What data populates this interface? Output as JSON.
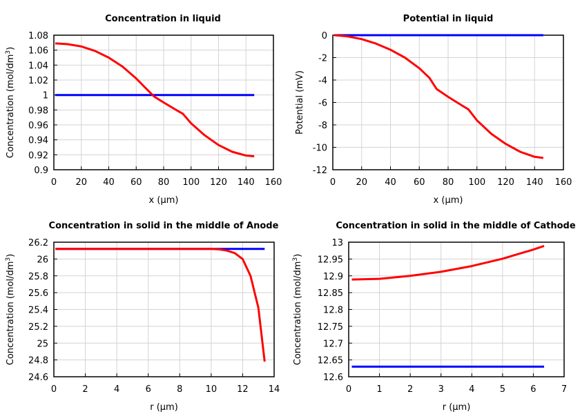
{
  "chart_data": [
    {
      "type": "line",
      "title": "Concentration in liquid",
      "xlabel": "x (µm)",
      "ylabel": "Concentration (mol/dm3)",
      "xlim": [
        0,
        160
      ],
      "ylim": [
        0.9,
        1.08
      ],
      "xticks": [
        0,
        20,
        40,
        60,
        80,
        100,
        120,
        140,
        160
      ],
      "yticks": [
        0.9,
        0.92,
        0.94,
        0.96,
        0.98,
        1,
        1.02,
        1.04,
        1.06,
        1.08
      ],
      "yticklabels": [
        "0.9",
        "0.92",
        "0.94",
        "0.96",
        "0.98",
        "1",
        "1.02",
        "1.04",
        "1.06",
        "1.08"
      ],
      "grid": true,
      "series": [
        {
          "color": "#0000ff",
          "x": [
            1,
            146
          ],
          "y": [
            1,
            1
          ]
        },
        {
          "color": "#ff0000",
          "x": [
            1,
            10,
            20,
            30,
            40,
            50,
            60,
            67,
            73,
            80,
            90,
            94,
            100,
            110,
            120,
            130,
            140,
            146
          ],
          "y": [
            1.069,
            1.068,
            1.065,
            1.059,
            1.05,
            1.038,
            1.022,
            1.009,
            0.998,
            0.99,
            0.979,
            0.975,
            0.962,
            0.946,
            0.933,
            0.924,
            0.919,
            0.918
          ]
        }
      ]
    },
    {
      "type": "line",
      "title": "Potential in liquid",
      "xlabel": "x (µm)",
      "ylabel": "Potential (mV)",
      "xlim": [
        0,
        160
      ],
      "ylim": [
        -12,
        0
      ],
      "xticks": [
        0,
        20,
        40,
        60,
        80,
        100,
        120,
        140,
        160
      ],
      "yticks": [
        -12,
        -10,
        -8,
        -6,
        -4,
        -2,
        0
      ],
      "yticklabels": [
        "-12",
        "-10",
        "-8",
        "-6",
        "-4",
        "-2",
        "0"
      ],
      "grid": true,
      "series": [
        {
          "color": "#0000ff",
          "x": [
            1,
            146
          ],
          "y": [
            0,
            0
          ]
        },
        {
          "color": "#ff0000",
          "x": [
            1,
            10,
            20,
            30,
            40,
            50,
            60,
            67,
            72,
            80,
            90,
            94,
            100,
            110,
            120,
            130,
            140,
            146
          ],
          "y": [
            0,
            -0.1,
            -0.35,
            -0.75,
            -1.3,
            -2.0,
            -2.95,
            -3.8,
            -4.8,
            -5.5,
            -6.3,
            -6.6,
            -7.6,
            -8.8,
            -9.7,
            -10.4,
            -10.85,
            -10.95
          ]
        }
      ]
    },
    {
      "type": "line",
      "title": "Concentration in solid in the middle of Anode",
      "xlabel": "r (µm)",
      "ylabel": "Concentration (mol/dm3)",
      "xlim": [
        0,
        14
      ],
      "ylim": [
        24.6,
        26.2
      ],
      "xticks": [
        0,
        2,
        4,
        6,
        8,
        10,
        12,
        14
      ],
      "yticks": [
        24.6,
        24.8,
        25,
        25.2,
        25.4,
        25.6,
        25.8,
        26,
        26.2
      ],
      "yticklabels": [
        "24.6",
        "24.8",
        "25",
        "25.2",
        "25.4",
        "25.6",
        "25.8",
        "26",
        "26.2"
      ],
      "grid": true,
      "series": [
        {
          "color": "#0000ff",
          "x": [
            0.1,
            13.4
          ],
          "y": [
            26.12,
            26.12
          ]
        },
        {
          "color": "#ff0000",
          "x": [
            0.1,
            10,
            10.5,
            11,
            11.5,
            12,
            12.5,
            13,
            13.4
          ],
          "y": [
            26.12,
            26.12,
            26.115,
            26.1,
            26.07,
            26.0,
            25.8,
            25.42,
            24.78
          ]
        }
      ]
    },
    {
      "type": "line",
      "title": "Concentration in solid in the middle of Cathode",
      "xlabel": "r (µm)",
      "ylabel": "Concentration (mol/dm3)",
      "xlim": [
        0,
        7
      ],
      "ylim": [
        12.6,
        13
      ],
      "xticks": [
        0,
        1,
        2,
        3,
        4,
        5,
        6,
        7
      ],
      "yticks": [
        12.6,
        12.65,
        12.7,
        12.75,
        12.8,
        12.85,
        12.9,
        12.95,
        13
      ],
      "yticklabels": [
        "12.6",
        "12.65",
        "12.7",
        "12.75",
        "12.8",
        "12.85",
        "12.9",
        "12.95",
        "13"
      ],
      "grid": true,
      "series": [
        {
          "color": "#0000ff",
          "x": [
            0.1,
            6.35
          ],
          "y": [
            12.63,
            12.63
          ]
        },
        {
          "color": "#ff0000",
          "x": [
            0.1,
            1,
            2,
            3,
            4,
            5,
            6,
            6.35
          ],
          "y": [
            12.889,
            12.891,
            12.9,
            12.912,
            12.929,
            12.951,
            12.978,
            12.989
          ]
        }
      ]
    }
  ]
}
